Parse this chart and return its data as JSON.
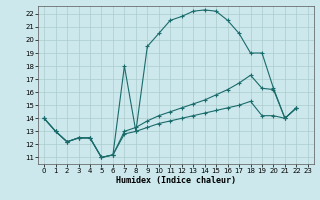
{
  "xlabel": "Humidex (Indice chaleur)",
  "bg_color": "#cce8ec",
  "grid_color": "#aacccc",
  "line_color": "#1a6b6b",
  "xlim": [
    -0.5,
    23.5
  ],
  "ylim": [
    10.5,
    22.6
  ],
  "xticks": [
    0,
    1,
    2,
    3,
    4,
    5,
    6,
    7,
    8,
    9,
    10,
    11,
    12,
    13,
    14,
    15,
    16,
    17,
    18,
    19,
    20,
    21,
    22,
    23
  ],
  "yticks": [
    11,
    12,
    13,
    14,
    15,
    16,
    17,
    18,
    19,
    20,
    21,
    22
  ],
  "lines": [
    {
      "x": [
        0,
        1,
        2,
        3,
        4,
        5,
        6,
        7,
        8,
        9,
        10,
        11,
        12,
        13,
        14,
        15,
        16,
        17,
        18,
        19,
        20,
        21,
        22
      ],
      "y": [
        14,
        13,
        12.2,
        12.5,
        12.5,
        11.0,
        11.2,
        18.0,
        13.0,
        19.5,
        20.5,
        21.5,
        21.8,
        22.2,
        22.3,
        22.2,
        21.5,
        20.5,
        19.0,
        19.0,
        16.3,
        14.0,
        14.8
      ]
    },
    {
      "x": [
        0,
        1,
        2,
        3,
        4,
        5,
        6,
        7,
        8,
        9,
        10,
        11,
        12,
        13,
        14,
        15,
        16,
        17,
        18,
        19,
        20,
        21,
        22
      ],
      "y": [
        14,
        13,
        12.2,
        12.5,
        12.5,
        11.0,
        11.2,
        13.0,
        13.3,
        13.8,
        14.2,
        14.5,
        14.8,
        15.1,
        15.4,
        15.8,
        16.2,
        16.7,
        17.3,
        16.3,
        16.2,
        14.0,
        14.8
      ]
    },
    {
      "x": [
        0,
        1,
        2,
        3,
        4,
        5,
        6,
        7,
        8,
        9,
        10,
        11,
        12,
        13,
        14,
        15,
        16,
        17,
        18,
        19,
        20,
        21,
        22
      ],
      "y": [
        14,
        13,
        12.2,
        12.5,
        12.5,
        11.0,
        11.2,
        12.8,
        13.0,
        13.3,
        13.6,
        13.8,
        14.0,
        14.2,
        14.4,
        14.6,
        14.8,
        15.0,
        15.3,
        14.2,
        14.2,
        14.0,
        14.8
      ]
    }
  ]
}
